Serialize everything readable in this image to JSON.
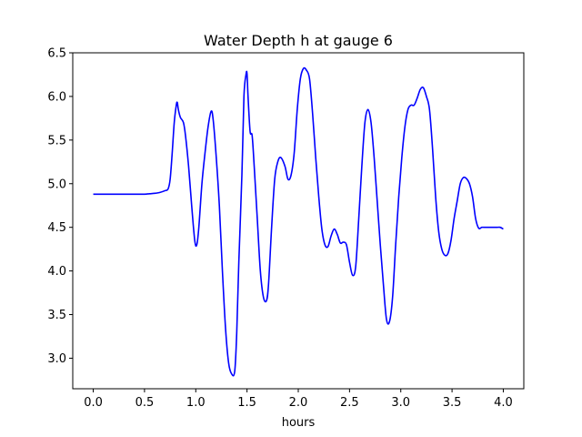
{
  "chart_data": {
    "type": "line",
    "title": "Water Depth h at gauge 6",
    "xlabel": "hours",
    "ylabel": "",
    "xlim": [
      -0.2,
      4.2
    ],
    "ylim": [
      2.65,
      6.5
    ],
    "xticks": [
      0.0,
      0.5,
      1.0,
      1.5,
      2.0,
      2.5,
      3.0,
      3.5,
      4.0
    ],
    "xtick_labels": [
      "0.0",
      "0.5",
      "1.0",
      "1.5",
      "2.0",
      "2.5",
      "3.0",
      "3.5",
      "4.0"
    ],
    "yticks": [
      3.0,
      3.5,
      4.0,
      4.5,
      5.0,
      5.5,
      6.0,
      6.5
    ],
    "ytick_labels": [
      "3.0",
      "3.5",
      "4.0",
      "4.5",
      "5.0",
      "5.5",
      "6.0",
      "6.5"
    ],
    "grid": false,
    "series": [
      {
        "name": "",
        "color": "#0000ff",
        "x": [
          0.0,
          0.1,
          0.2,
          0.3,
          0.4,
          0.5,
          0.55,
          0.6,
          0.65,
          0.7,
          0.73,
          0.75,
          0.77,
          0.79,
          0.81,
          0.82,
          0.83,
          0.85,
          0.88,
          0.9,
          0.93,
          0.96,
          0.99,
          1.01,
          1.03,
          1.06,
          1.09,
          1.12,
          1.15,
          1.17,
          1.2,
          1.23,
          1.26,
          1.29,
          1.32,
          1.35,
          1.38,
          1.4,
          1.42,
          1.45,
          1.47,
          1.49,
          1.5,
          1.51,
          1.53,
          1.55,
          1.57,
          1.6,
          1.63,
          1.66,
          1.69,
          1.71,
          1.74,
          1.77,
          1.8,
          1.83,
          1.87,
          1.9,
          1.93,
          1.96,
          1.99,
          2.02,
          2.05,
          2.08,
          2.11,
          2.14,
          2.17,
          2.2,
          2.23,
          2.26,
          2.29,
          2.32,
          2.35,
          2.38,
          2.41,
          2.44,
          2.47,
          2.5,
          2.53,
          2.56,
          2.59,
          2.62,
          2.65,
          2.68,
          2.71,
          2.74,
          2.77,
          2.8,
          2.83,
          2.86,
          2.89,
          2.92,
          2.95,
          2.98,
          3.01,
          3.04,
          3.07,
          3.1,
          3.13,
          3.16,
          3.19,
          3.22,
          3.25,
          3.28,
          3.31,
          3.34,
          3.37,
          3.4,
          3.43,
          3.46,
          3.49,
          3.52,
          3.55,
          3.58,
          3.61,
          3.64,
          3.67,
          3.7,
          3.73,
          3.76,
          3.79,
          3.82,
          3.85,
          3.88,
          3.91,
          3.94,
          3.97,
          4.0
        ],
        "y": [
          4.88,
          4.88,
          4.88,
          4.88,
          4.88,
          4.88,
          4.885,
          4.89,
          4.9,
          4.92,
          4.94,
          5.05,
          5.35,
          5.7,
          5.9,
          5.93,
          5.85,
          5.76,
          5.7,
          5.55,
          5.2,
          4.75,
          4.35,
          4.3,
          4.5,
          5.0,
          5.35,
          5.65,
          5.83,
          5.73,
          5.3,
          4.75,
          4.0,
          3.35,
          2.95,
          2.82,
          2.85,
          3.3,
          4.1,
          5.1,
          6.0,
          6.25,
          6.26,
          6.0,
          5.6,
          5.55,
          5.2,
          4.6,
          4.0,
          3.7,
          3.66,
          3.85,
          4.5,
          5.05,
          5.25,
          5.3,
          5.2,
          5.05,
          5.1,
          5.35,
          5.85,
          6.2,
          6.32,
          6.3,
          6.2,
          5.8,
          5.3,
          4.85,
          4.48,
          4.3,
          4.28,
          4.4,
          4.48,
          4.42,
          4.32,
          4.33,
          4.3,
          4.1,
          3.95,
          4.05,
          4.6,
          5.2,
          5.7,
          5.85,
          5.7,
          5.3,
          4.8,
          4.3,
          3.85,
          3.45,
          3.42,
          3.7,
          4.3,
          4.85,
          5.3,
          5.65,
          5.85,
          5.9,
          5.9,
          5.98,
          6.08,
          6.1,
          6.0,
          5.85,
          5.4,
          4.85,
          4.45,
          4.25,
          4.18,
          4.2,
          4.35,
          4.6,
          4.8,
          5.0,
          5.07,
          5.06,
          5.0,
          4.85,
          4.6,
          4.49,
          4.5,
          4.5,
          4.5,
          4.5,
          4.5,
          4.5,
          4.5,
          4.48
        ]
      }
    ]
  }
}
